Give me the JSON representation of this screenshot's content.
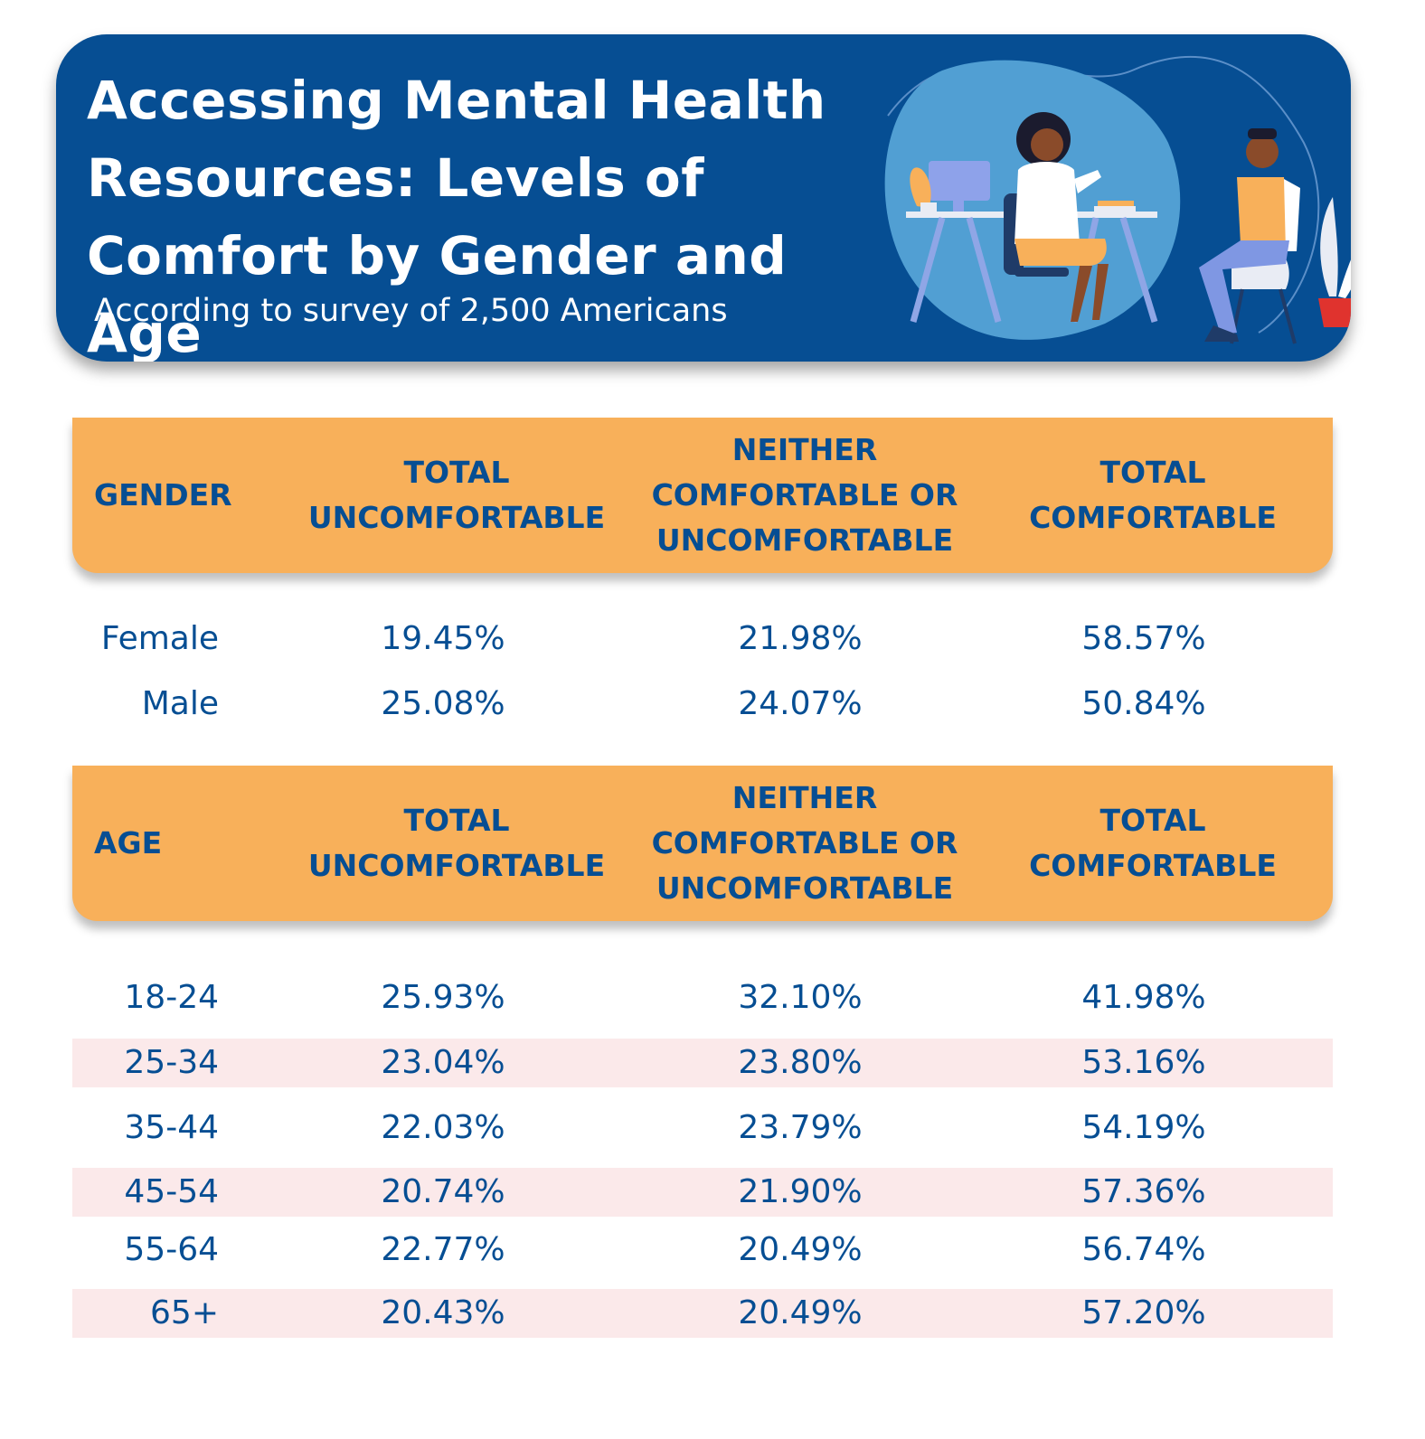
{
  "banner": {
    "title": "Accessing Mental Health Resources: Levels of Comfort by Gender and Age",
    "subtitle": "According to survey of 2,500 Americans"
  },
  "colors": {
    "banner_bg": "#064e93",
    "header_bg": "#f8b05a",
    "text": "#064e93",
    "row_shade": "#fbe9ea"
  },
  "chart_data": [
    {
      "type": "table",
      "columns": [
        "GENDER",
        "TOTAL\nUNCOMFORTABLE",
        "NEITHER\nCOMFORTABLE OR\nUNCOMFORTABLE",
        "TOTAL\nCOMFORTABLE"
      ],
      "rows": [
        [
          "Female",
          "19.45%",
          "21.98%",
          "58.57%"
        ],
        [
          "Male",
          "25.08%",
          "24.07%",
          "50.84%"
        ]
      ]
    },
    {
      "type": "table",
      "columns": [
        "AGE",
        "TOTAL\nUNCOMFORTABLE",
        "NEITHER\nCOMFORTABLE OR\nUNCOMFORTABLE",
        "TOTAL\nCOMFORTABLE"
      ],
      "rows": [
        [
          "18-24",
          "25.93%",
          "32.10%",
          "41.98%"
        ],
        [
          "25-34",
          "23.04%",
          "23.80%",
          "53.16%"
        ],
        [
          "35-44",
          "22.03%",
          "23.79%",
          "54.19%"
        ],
        [
          "45-54",
          "20.74%",
          "21.90%",
          "57.36%"
        ],
        [
          "55-64",
          "22.77%",
          "20.49%",
          "56.74%"
        ],
        [
          "65+",
          "20.43%",
          "20.49%",
          "57.20%"
        ]
      ]
    }
  ]
}
